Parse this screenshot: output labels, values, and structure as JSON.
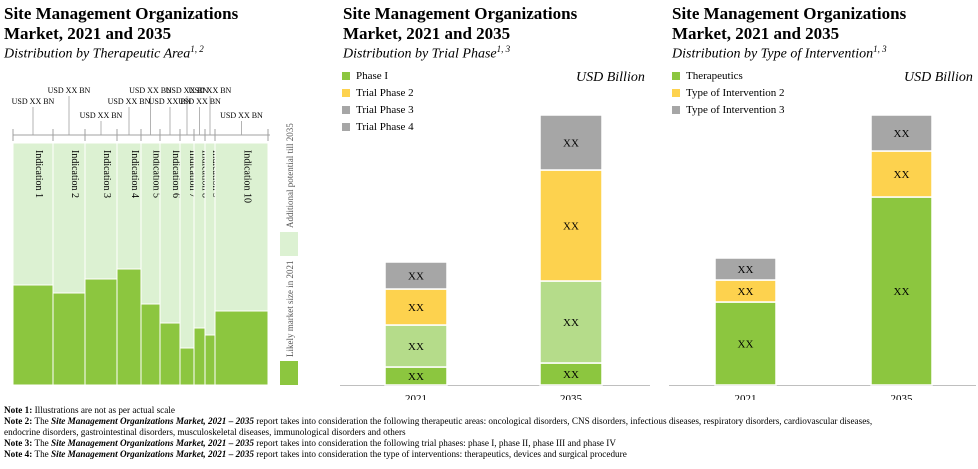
{
  "panels": [
    {
      "title_line1": "Site Management Organizations",
      "title_line2": "Market, 2021 and 2035",
      "subtitle": "Distribution by Therapeutic Area",
      "subtitle_sup": "1, 2"
    },
    {
      "title_line1": "Site Management Organizations",
      "title_line2": "Market, 2021 and 2035",
      "subtitle": "Distribution by Trial Phase",
      "subtitle_sup": "1, 3",
      "unit": "USD Billion"
    },
    {
      "title_line1": "Site Management Organizations",
      "title_line2": "Market, 2021 and 2035",
      "subtitle": "Distribution by Type of Intervention",
      "subtitle_sup": "1, 3",
      "unit": "USD Billion"
    }
  ],
  "colors": {
    "green": "#8cc63f",
    "light_green": "#b5dc8a",
    "pale_green": "#dcf1d2",
    "yellow": "#fdd24e",
    "grey": "#a6a6a6"
  },
  "chart_data": [
    {
      "type": "bar",
      "categories": [
        "Indication 1",
        "Indication 2",
        "Indication 3",
        "Indication 4",
        "Indication 5",
        "Indication 6",
        "Indication 7",
        "Indication 8",
        "Indication 9",
        "Indication 10"
      ],
      "widths": [
        40,
        32,
        32,
        24,
        19,
        20,
        14,
        11,
        10,
        53
      ],
      "values_2021": [
        100,
        92,
        106,
        116,
        81,
        62,
        37,
        57,
        50,
        74
      ],
      "values_2035": [
        242,
        242,
        242,
        242,
        242,
        242,
        242,
        242,
        242,
        242
      ],
      "top_labels": [
        "USD XX BN",
        "USD XX BN",
        "USD XX BN",
        "USD XX BN",
        "USD XX BN",
        "USD XX BN",
        "USD XX BN",
        "USD XX BN",
        "USD XX BN",
        "USD XX BN"
      ],
      "side_labels": [
        "Additional potential till 2035",
        "Likely market size in 2021"
      ],
      "legend": "right"
    },
    {
      "type": "bar",
      "stacked": true,
      "categories": [
        "2021",
        "2035"
      ],
      "series": [
        {
          "name": "Phase I",
          "values": [
            18,
            22
          ],
          "labels": [
            "XX",
            "XX"
          ]
        },
        {
          "name": "Trial Phase 2",
          "values": [
            42,
            82
          ],
          "labels": [
            "XX",
            "XX"
          ]
        },
        {
          "name": "Trial Phase 3",
          "values": [
            36,
            111
          ],
          "labels": [
            "XX",
            "XX"
          ]
        },
        {
          "name": "Trial Phase 4",
          "values": [
            27,
            55
          ],
          "labels": [
            "XX",
            "XX"
          ]
        }
      ],
      "ylim": [
        0,
        280
      ],
      "legend": "top-left"
    },
    {
      "type": "bar",
      "stacked": true,
      "categories": [
        "2021",
        "2035"
      ],
      "series": [
        {
          "name": "Therapeutics",
          "values": [
            83,
            188
          ],
          "labels": [
            "XX",
            "XX"
          ]
        },
        {
          "name": "Type of Intervention 2",
          "values": [
            22,
            46
          ],
          "labels": [
            "XX",
            "XX"
          ]
        },
        {
          "name": "Type of Intervention 3",
          "values": [
            22,
            36
          ],
          "labels": [
            "XX",
            "XX"
          ]
        }
      ],
      "ylim": [
        0,
        280
      ],
      "legend": "top-left"
    }
  ],
  "notes": [
    {
      "label": "Note 1:",
      "parts": [
        {
          "t": " Illustrations  are not as per actual scale",
          "s": "n"
        }
      ]
    },
    {
      "label": "Note 2:",
      "parts": [
        {
          "t": " The ",
          "s": "n"
        },
        {
          "t": "Site Management Organizations Market, 2021 – 2035",
          "s": "bi"
        },
        {
          "t": " report takes into consideration the following  therapeutic areas: oncological disorders, CNS disorders, infectious diseases, respiratory disorders, cardiovascular diseases,",
          "s": "n"
        }
      ]
    },
    {
      "label": "",
      "parts": [
        {
          "t": "endocrine disorders, gastrointestinal  disorders, musculoskeletal  diseases, immunological  disorders and others",
          "s": "n"
        }
      ]
    },
    {
      "label": "Note 3:",
      "parts": [
        {
          "t": " The ",
          "s": "n"
        },
        {
          "t": "Site Management Organizations Market, 2021 – 2035",
          "s": "bi"
        },
        {
          "t": " report takes into consideration the following  trial phases: phase I, phase II, phase III and phase IV",
          "s": "n"
        }
      ]
    },
    {
      "label": "Note 4:",
      "parts": [
        {
          "t": " The ",
          "s": "n"
        },
        {
          "t": "Site Management Organizations Market, 2021 – 2035",
          "s": "bi"
        },
        {
          "t": " report takes into consideration the type of interventions:  therapeutics, devices and surgical procedure",
          "s": "n"
        }
      ]
    }
  ]
}
